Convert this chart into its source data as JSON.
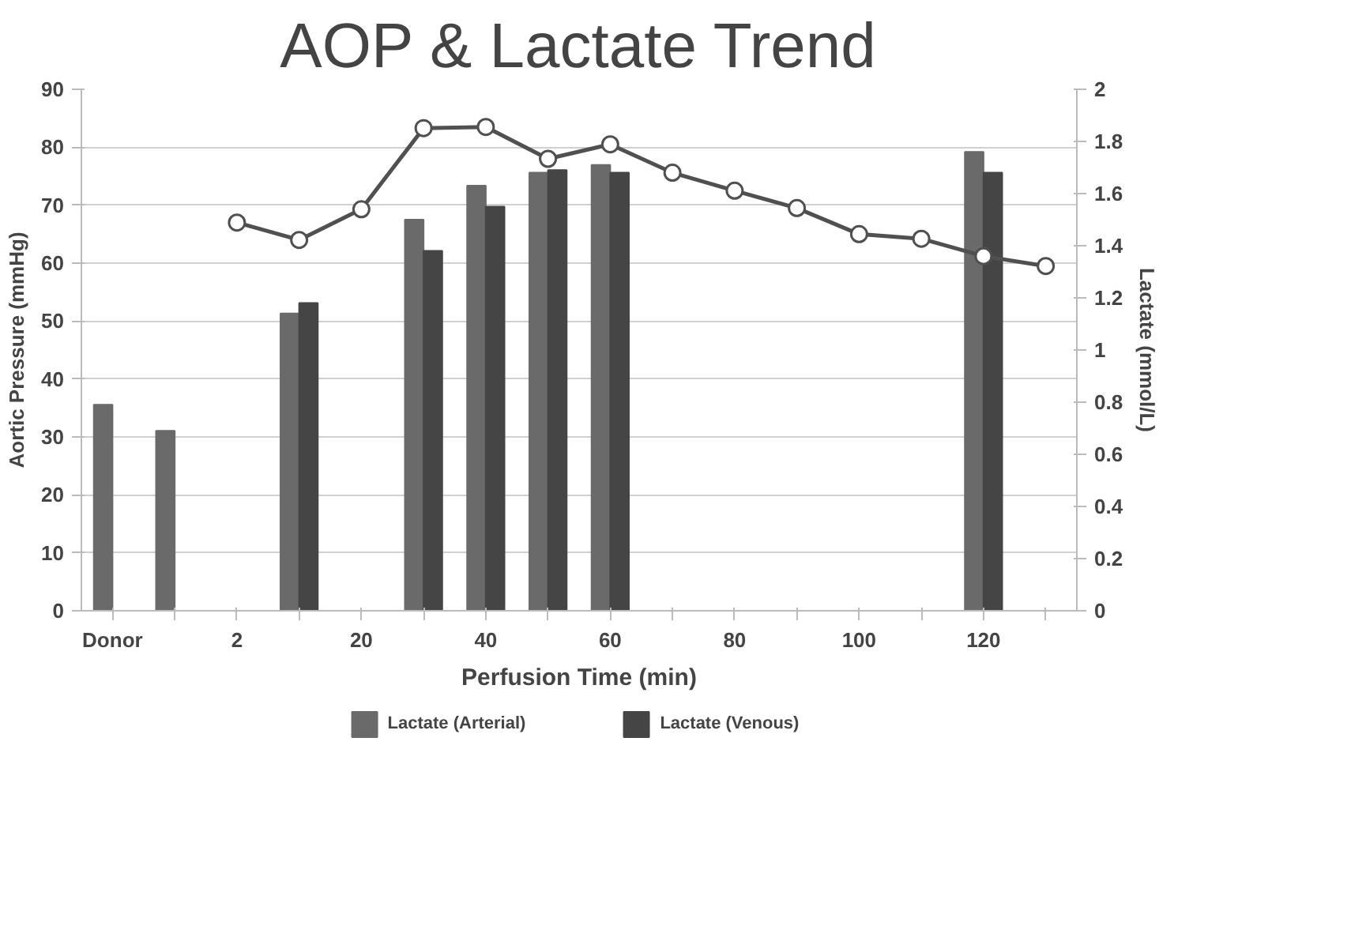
{
  "chart_data": {
    "type": "bar",
    "title": "AOP & Lactate Trend",
    "xlabel": "Perfusion Time (min)",
    "ylabel": "Aortic Pressure (mmHg)",
    "y2label": "Lactate (mmol/L)",
    "categories": [
      "Donor",
      null,
      "2",
      null,
      "20",
      null,
      "40",
      null,
      "60",
      null,
      "80",
      null,
      "100",
      null,
      "120",
      null
    ],
    "series": [
      {
        "name": "Lactate (Arterial)",
        "axis": "y2",
        "color": "#6a6a6a",
        "values": [
          0.79,
          0.69,
          null,
          1.14,
          null,
          1.5,
          1.63,
          1.68,
          1.71,
          null,
          null,
          null,
          null,
          null,
          1.76,
          null
        ]
      },
      {
        "name": "Lactate (Venous)",
        "axis": "y2",
        "color": "#454545",
        "values": [
          null,
          null,
          null,
          1.18,
          null,
          1.38,
          1.55,
          1.69,
          1.68,
          null,
          null,
          null,
          null,
          null,
          1.68,
          null
        ]
      },
      {
        "type": "line",
        "color": "#505050",
        "values": [
          null,
          null,
          67,
          64,
          69.3,
          83.3,
          83.5,
          78,
          80.5,
          75.6,
          72.5,
          69.5,
          65,
          64.2,
          61.2,
          59.5
        ]
      }
    ],
    "ylim": [
      0,
      90
    ],
    "yticks": [
      0,
      10,
      20,
      30,
      40,
      50,
      60,
      70,
      80,
      90
    ],
    "y2lim": [
      0,
      2
    ],
    "y2ticks": [
      0,
      {
        "value": 0.2,
        "label": "0.2"
      },
      {
        "value": 0.4,
        "label": "0.4"
      },
      {
        "value": 0.6,
        "label": "0.6"
      },
      {
        "value": 0.8,
        "label": "0.8"
      },
      1,
      {
        "value": 1.2,
        "label": "1.2"
      },
      {
        "value": 1.4,
        "label": "1.4"
      },
      {
        "value": 1.6,
        "label": "1.6"
      },
      {
        "value": 1.8,
        "label": "1.8"
      },
      2
    ],
    "grid": "y",
    "legend": "bottom",
    "marker": "circle",
    "line_style": "solid"
  }
}
